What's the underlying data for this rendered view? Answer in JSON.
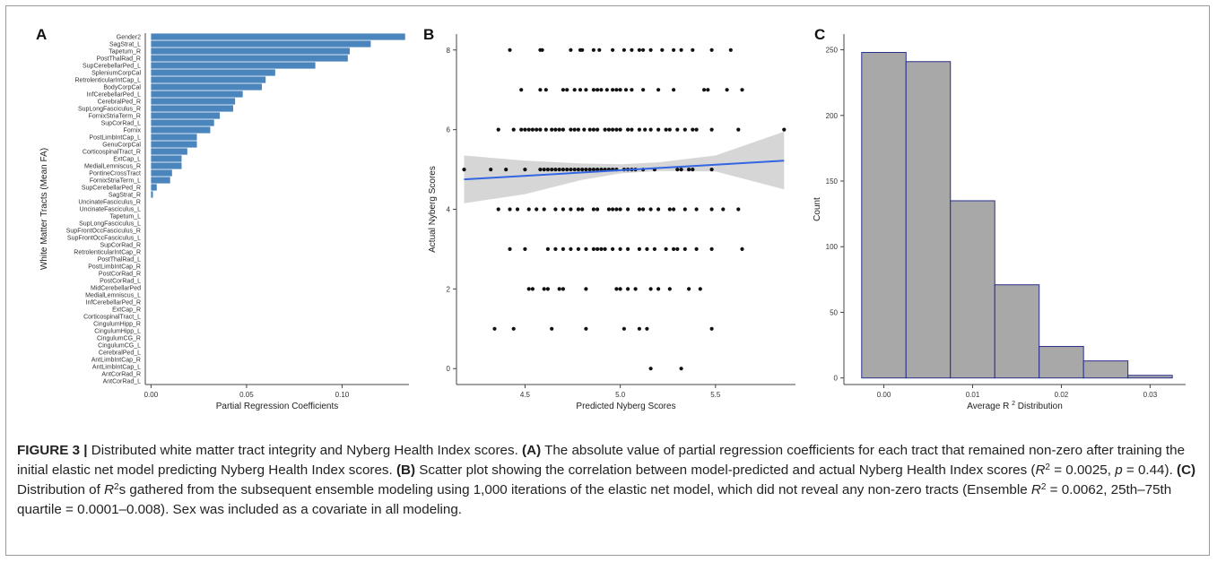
{
  "panels": {
    "a": {
      "letter": "A"
    },
    "b": {
      "letter": "B"
    },
    "c": {
      "letter": "C"
    }
  },
  "caption": {
    "label": "FIGURE 3 |",
    "intro": " Distributed white matter tract integrity and Nyberg Health Index scores. ",
    "a_tag": "(A)",
    "a_text": " The absolute value of partial regression coefficients for each tract that remained non-zero after training the initial elastic net model predicting Nyberg Health Index scores. ",
    "b_tag": "(B)",
    "b_text1": " Scatter plot showing the correlation between model-predicted and actual Nyberg Health Index scores (",
    "b_r": "R",
    "b_sup": "2",
    "b_text2": " = 0.0025, ",
    "b_p": "p",
    "b_text3": " = 0.44). ",
    "c_tag": "(C)",
    "c_text1": " Distribution of ",
    "c_r": "R",
    "c_sup": "2",
    "c_text2": "s gathered from the subsequent ensemble modeling using 1,000 iterations of the elastic net model, which did not reveal any non-zero tracts (Ensemble ",
    "c_r2": "R",
    "c_sup2": "2",
    "c_text3": " = 0.0062, 25th–75th quartile = 0.0001–0.008). Sex was included as a covariate in all modeling."
  },
  "colors": {
    "bar_fill": "#4a86bd",
    "hist_fill": "#a8a8a8",
    "hist_stroke": "#2a2e8c",
    "line": "#3366e0",
    "ribbon": "#d6d6d6",
    "point": "#111111",
    "axis": "#444444"
  },
  "chart_data": [
    {
      "panel": "A",
      "type": "bar",
      "orientation": "horizontal",
      "xlabel": "Partial Regression Coefficients",
      "ylabel": "White Matter Tracts (Mean FA)",
      "xlim": [
        -0.003,
        0.135
      ],
      "xticks": [
        0.0,
        0.05,
        0.1
      ],
      "xtick_labels": [
        "0.00",
        "0.05",
        "0.10"
      ],
      "categories": [
        "Gender2",
        "SagStrat_L",
        "Tapetum_R",
        "PostThalRad_R",
        "SupCerebellarPed_L",
        "SpleniumCorpCal",
        "RetrolenticularIntCap_L",
        "BodyCorpCal",
        "InfCerebellarPed_L",
        "CerebralPed_R",
        "SupLongFasciculus_R",
        "FornixStriaTerm_R",
        "SupCorRad_L",
        "Fornix",
        "PostLimbIntCap_L",
        "GenuCorpCal",
        "CorticospinalTract_R",
        "ExtCap_L",
        "MedialLemniscus_R",
        "PontineCrossTract",
        "FornixStriaTerm_L",
        "SupCerebellarPed_R",
        "SagStrat_R",
        "UncinateFasciculus_R",
        "UncinateFasciculus_L",
        "Tapetum_L",
        "SupLongFasciculus_L",
        "SupFrontOccFasciculus_R",
        "SupFrontOccFasciculus_L",
        "SupCorRad_R",
        "RetrolenticularIntCap_R",
        "PostThalRad_L",
        "PostLimbIntCap_R",
        "PostCorRad_R",
        "PostCorRad_L",
        "MidCerebellarPed",
        "MedialLemniscus_L",
        "InfCerebellarPed_R",
        "ExtCap_R",
        "CorticospinalTract_L",
        "CingulumHipp_R",
        "CingulumHipp_L",
        "CingulumCG_R",
        "CingulumCG_L",
        "CerebralPed_L",
        "AntLimbIntCap_R",
        "AntLimbIntCap_L",
        "AntCorRad_R",
        "AntCorRad_L"
      ],
      "values": [
        0.133,
        0.115,
        0.104,
        0.103,
        0.086,
        0.065,
        0.06,
        0.058,
        0.048,
        0.044,
        0.043,
        0.036,
        0.033,
        0.031,
        0.024,
        0.024,
        0.019,
        0.016,
        0.016,
        0.011,
        0.01,
        0.003,
        0.001,
        0,
        0,
        0,
        0,
        0,
        0,
        0,
        0,
        0,
        0,
        0,
        0,
        0,
        0,
        0,
        0,
        0,
        0,
        0,
        0,
        0,
        0,
        0,
        0,
        0,
        0
      ]
    },
    {
      "panel": "B",
      "type": "scatter",
      "xlabel": "Predicted Nyberg Scores",
      "ylabel": "Actual Nyberg Scores",
      "xlim": [
        4.14,
        5.92
      ],
      "ylim": [
        -0.4,
        8.4
      ],
      "xticks": [
        4.5,
        5.0,
        5.5
      ],
      "xtick_labels": [
        "4.5",
        "5.0",
        "5.5"
      ],
      "yticks": [
        0,
        2,
        4,
        6,
        8
      ],
      "ytick_labels": [
        "0",
        "2",
        "4",
        "6",
        "8"
      ],
      "points": [
        [
          4.42,
          8
        ],
        [
          4.58,
          8
        ],
        [
          4.59,
          8
        ],
        [
          4.74,
          8
        ],
        [
          4.79,
          8
        ],
        [
          4.8,
          8
        ],
        [
          4.86,
          8
        ],
        [
          4.89,
          8
        ],
        [
          4.96,
          8
        ],
        [
          5.02,
          8
        ],
        [
          5.06,
          8
        ],
        [
          5.1,
          8
        ],
        [
          5.12,
          8
        ],
        [
          5.16,
          8
        ],
        [
          5.22,
          8
        ],
        [
          5.28,
          8
        ],
        [
          5.32,
          8
        ],
        [
          5.38,
          8
        ],
        [
          5.48,
          8
        ],
        [
          5.58,
          8
        ],
        [
          4.48,
          7
        ],
        [
          4.58,
          7
        ],
        [
          4.61,
          7
        ],
        [
          4.7,
          7
        ],
        [
          4.72,
          7
        ],
        [
          4.76,
          7
        ],
        [
          4.79,
          7
        ],
        [
          4.82,
          7
        ],
        [
          4.86,
          7
        ],
        [
          4.88,
          7
        ],
        [
          4.9,
          7
        ],
        [
          4.93,
          7
        ],
        [
          4.96,
          7
        ],
        [
          4.98,
          7
        ],
        [
          5.0,
          7
        ],
        [
          5.03,
          7
        ],
        [
          5.06,
          7
        ],
        [
          5.12,
          7
        ],
        [
          5.2,
          7
        ],
        [
          5.28,
          7
        ],
        [
          5.44,
          7
        ],
        [
          5.46,
          7
        ],
        [
          5.56,
          7
        ],
        [
          5.64,
          7
        ],
        [
          4.36,
          6
        ],
        [
          4.44,
          6
        ],
        [
          4.48,
          6
        ],
        [
          4.5,
          6
        ],
        [
          4.52,
          6
        ],
        [
          4.54,
          6
        ],
        [
          4.56,
          6
        ],
        [
          4.58,
          6
        ],
        [
          4.61,
          6
        ],
        [
          4.64,
          6
        ],
        [
          4.66,
          6
        ],
        [
          4.68,
          6
        ],
        [
          4.7,
          6
        ],
        [
          4.74,
          6
        ],
        [
          4.76,
          6
        ],
        [
          4.78,
          6
        ],
        [
          4.81,
          6
        ],
        [
          4.84,
          6
        ],
        [
          4.86,
          6
        ],
        [
          4.88,
          6
        ],
        [
          4.92,
          6
        ],
        [
          4.94,
          6
        ],
        [
          4.96,
          6
        ],
        [
          4.98,
          6
        ],
        [
          5.0,
          6
        ],
        [
          5.04,
          6
        ],
        [
          5.06,
          6
        ],
        [
          5.1,
          6
        ],
        [
          5.13,
          6
        ],
        [
          5.16,
          6
        ],
        [
          5.2,
          6
        ],
        [
          5.24,
          6
        ],
        [
          5.26,
          6
        ],
        [
          5.3,
          6
        ],
        [
          5.34,
          6
        ],
        [
          5.38,
          6
        ],
        [
          5.4,
          6
        ],
        [
          5.48,
          6
        ],
        [
          5.62,
          6
        ],
        [
          5.86,
          6
        ],
        [
          4.18,
          5
        ],
        [
          4.32,
          5
        ],
        [
          4.4,
          5
        ],
        [
          4.5,
          5
        ],
        [
          4.58,
          5
        ],
        [
          4.6,
          5
        ],
        [
          4.62,
          5
        ],
        [
          4.64,
          5
        ],
        [
          4.66,
          5
        ],
        [
          4.68,
          5
        ],
        [
          4.7,
          5
        ],
        [
          4.72,
          5
        ],
        [
          4.74,
          5
        ],
        [
          4.76,
          5
        ],
        [
          4.78,
          5
        ],
        [
          4.8,
          5
        ],
        [
          4.82,
          5
        ],
        [
          4.84,
          5
        ],
        [
          4.86,
          5
        ],
        [
          4.88,
          5
        ],
        [
          4.9,
          5
        ],
        [
          4.92,
          5
        ],
        [
          4.94,
          5
        ],
        [
          4.96,
          5
        ],
        [
          4.98,
          5
        ],
        [
          5.02,
          5
        ],
        [
          5.04,
          5
        ],
        [
          5.06,
          5
        ],
        [
          5.08,
          5
        ],
        [
          5.12,
          5
        ],
        [
          5.18,
          5
        ],
        [
          5.3,
          5
        ],
        [
          5.32,
          5
        ],
        [
          5.36,
          5
        ],
        [
          5.38,
          5
        ],
        [
          5.48,
          5
        ],
        [
          4.36,
          4
        ],
        [
          4.42,
          4
        ],
        [
          4.46,
          4
        ],
        [
          4.52,
          4
        ],
        [
          4.56,
          4
        ],
        [
          4.6,
          4
        ],
        [
          4.66,
          4
        ],
        [
          4.7,
          4
        ],
        [
          4.74,
          4
        ],
        [
          4.78,
          4
        ],
        [
          4.8,
          4
        ],
        [
          4.86,
          4
        ],
        [
          4.88,
          4
        ],
        [
          4.94,
          4
        ],
        [
          4.96,
          4
        ],
        [
          4.98,
          4
        ],
        [
          5.0,
          4
        ],
        [
          5.04,
          4
        ],
        [
          5.1,
          4
        ],
        [
          5.12,
          4
        ],
        [
          5.16,
          4
        ],
        [
          5.2,
          4
        ],
        [
          5.26,
          4
        ],
        [
          5.28,
          4
        ],
        [
          5.34,
          4
        ],
        [
          5.4,
          4
        ],
        [
          5.48,
          4
        ],
        [
          5.54,
          4
        ],
        [
          5.62,
          4
        ],
        [
          4.42,
          3
        ],
        [
          4.5,
          3
        ],
        [
          4.62,
          3
        ],
        [
          4.66,
          3
        ],
        [
          4.7,
          3
        ],
        [
          4.74,
          3
        ],
        [
          4.78,
          3
        ],
        [
          4.82,
          3
        ],
        [
          4.86,
          3
        ],
        [
          4.88,
          3
        ],
        [
          4.9,
          3
        ],
        [
          4.92,
          3
        ],
        [
          4.96,
          3
        ],
        [
          5.0,
          3
        ],
        [
          5.04,
          3
        ],
        [
          5.1,
          3
        ],
        [
          5.14,
          3
        ],
        [
          5.18,
          3
        ],
        [
          5.24,
          3
        ],
        [
          5.28,
          3
        ],
        [
          5.3,
          3
        ],
        [
          5.34,
          3
        ],
        [
          5.4,
          3
        ],
        [
          5.48,
          3
        ],
        [
          5.64,
          3
        ],
        [
          4.52,
          2
        ],
        [
          4.54,
          2
        ],
        [
          4.6,
          2
        ],
        [
          4.62,
          2
        ],
        [
          4.68,
          2
        ],
        [
          4.7,
          2
        ],
        [
          4.82,
          2
        ],
        [
          4.98,
          2
        ],
        [
          5.0,
          2
        ],
        [
          5.04,
          2
        ],
        [
          5.08,
          2
        ],
        [
          5.16,
          2
        ],
        [
          5.2,
          2
        ],
        [
          5.26,
          2
        ],
        [
          5.36,
          2
        ],
        [
          5.42,
          2
        ],
        [
          4.34,
          1
        ],
        [
          4.44,
          1
        ],
        [
          4.64,
          1
        ],
        [
          4.82,
          1
        ],
        [
          5.02,
          1
        ],
        [
          5.1,
          1
        ],
        [
          5.14,
          1
        ],
        [
          5.48,
          1
        ],
        [
          5.16,
          0
        ],
        [
          5.32,
          0
        ]
      ],
      "fit_line": [
        [
          4.18,
          4.75
        ],
        [
          5.86,
          5.22
        ]
      ],
      "confidence_band": {
        "x": [
          4.18,
          4.5,
          4.8,
          5.0,
          5.2,
          5.5,
          5.86
        ],
        "upper": [
          5.35,
          5.22,
          5.15,
          5.13,
          5.18,
          5.35,
          5.95
        ],
        "lower": [
          4.15,
          4.38,
          4.74,
          4.9,
          4.96,
          4.95,
          4.5
        ]
      }
    },
    {
      "panel": "C",
      "type": "bar",
      "subtype": "histogram",
      "xlabel": "Average R",
      "xlabel_sup": "2",
      "xlabel_suffix": " Distribution",
      "ylabel": "Count",
      "xlim": [
        -0.0045,
        0.034
      ],
      "ylim": [
        -5,
        262
      ],
      "xticks": [
        0.0,
        0.01,
        0.02,
        0.03
      ],
      "xtick_labels": [
        "0.00",
        "0.01",
        "0.02",
        "0.03"
      ],
      "yticks": [
        0,
        50,
        100,
        150,
        200,
        250
      ],
      "ytick_labels": [
        "0",
        "50",
        "100",
        "150",
        "200",
        "250"
      ],
      "bin_edges": [
        -0.0025,
        0.0025,
        0.0075,
        0.0125,
        0.0175,
        0.0225,
        0.0275,
        0.0325
      ],
      "counts": [
        248,
        241,
        135,
        71,
        24,
        13,
        2
      ]
    }
  ]
}
